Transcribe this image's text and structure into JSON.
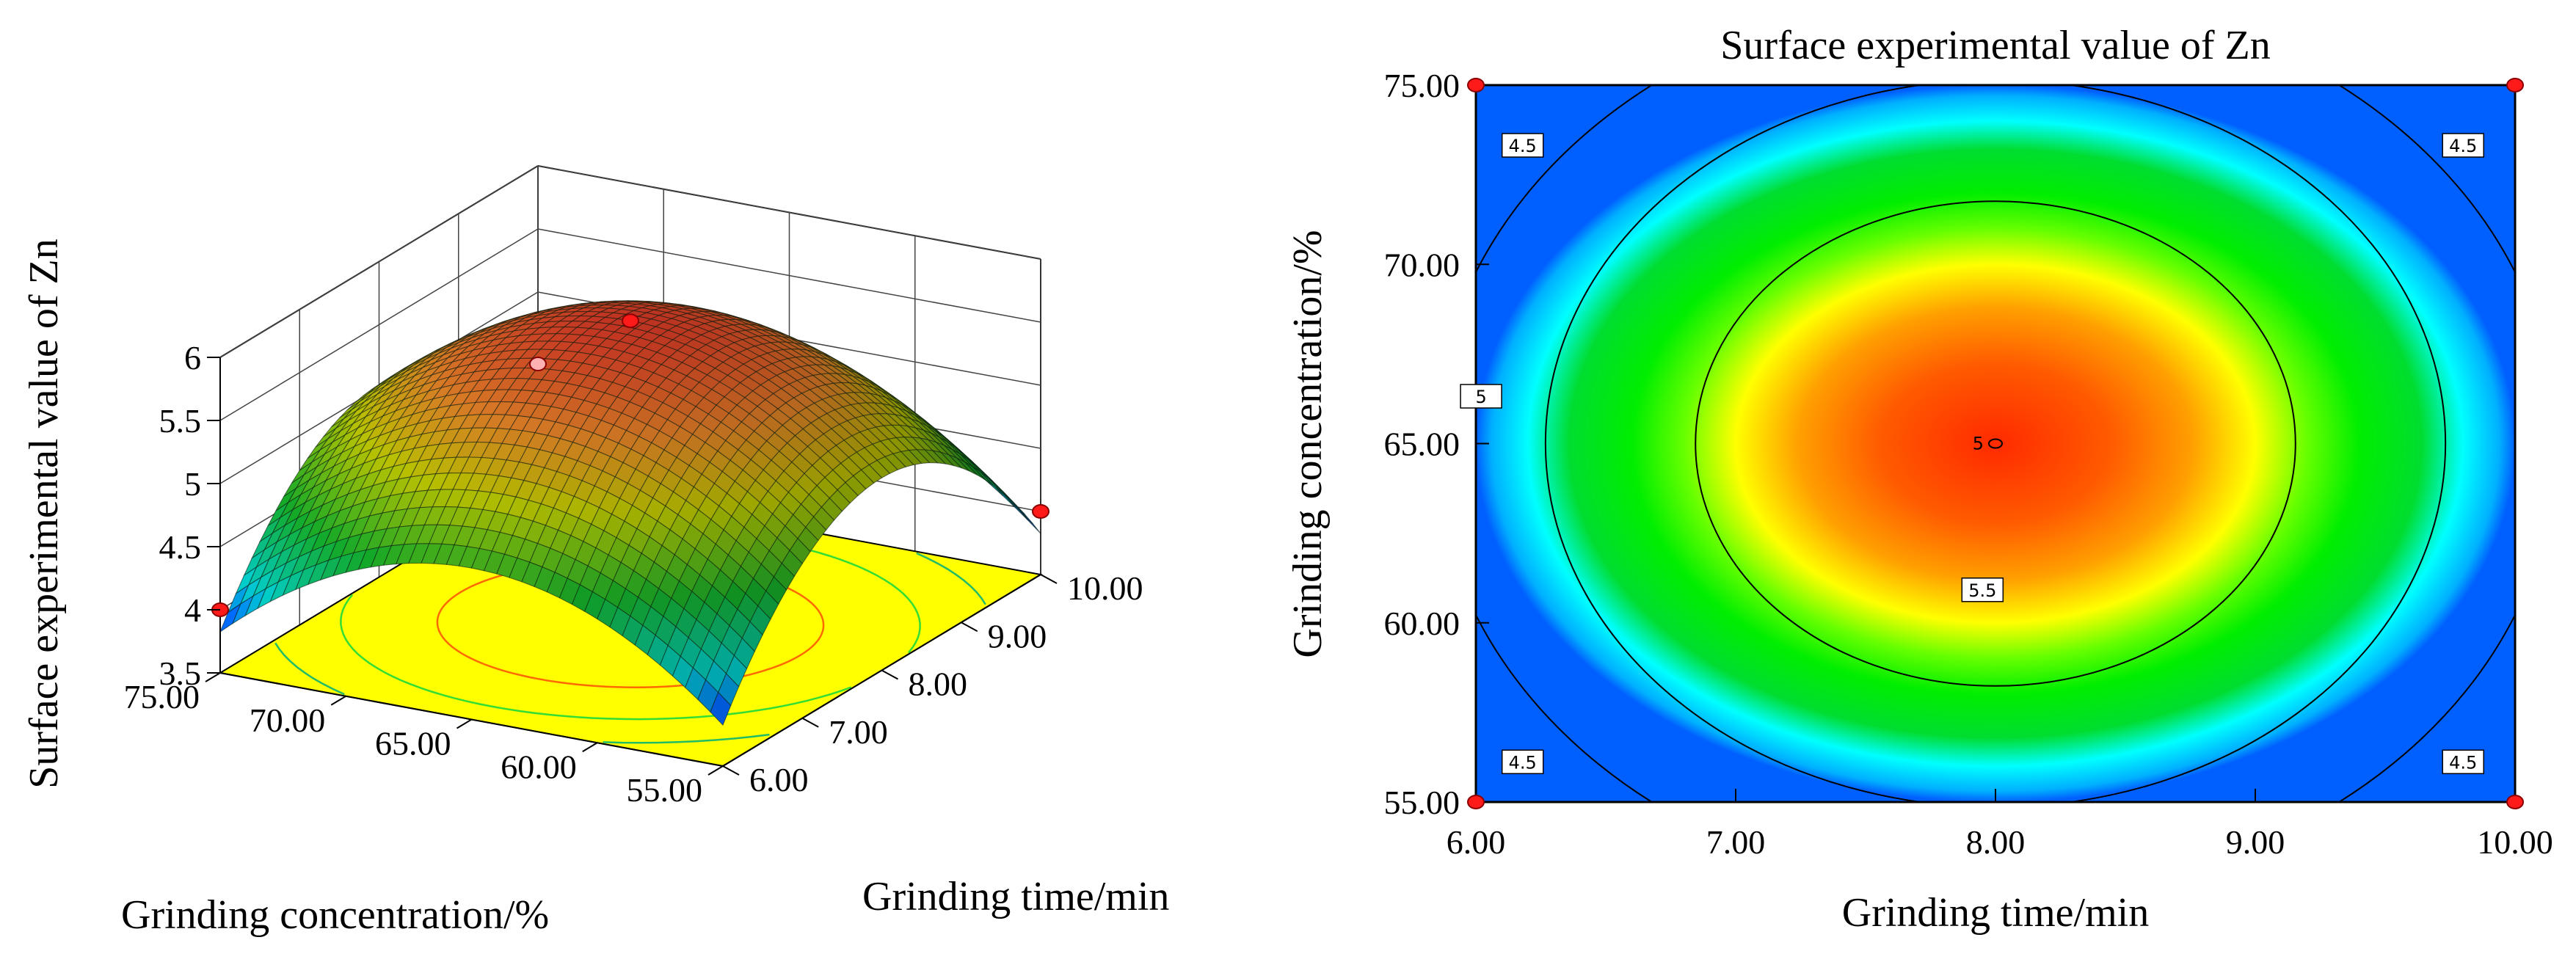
{
  "chart_data": [
    {
      "type": "surface3d",
      "title": "",
      "xlabel": "Grinding time/min",
      "ylabel": "Grinding concentration/%",
      "zlabel": "Surface experimental value of Zn",
      "x_ticks": [
        "6.00",
        "7.00",
        "8.00",
        "9.00",
        "10.00"
      ],
      "y_ticks": [
        "55.00",
        "60.00",
        "65.00",
        "70.00",
        "75.00"
      ],
      "z_ticks": [
        "3.5",
        "4",
        "4.5",
        "5",
        "5.5",
        "6"
      ],
      "xlim": [
        6,
        10
      ],
      "ylim": [
        55,
        75
      ],
      "zlim": [
        3.5,
        6
      ],
      "model": {
        "peak": 5.9,
        "x_center": 8,
        "y_center": 65,
        "a": 0.3,
        "b": 0.00875
      },
      "design_points": [
        {
          "x": 8,
          "y": 65,
          "z": 5.9
        },
        {
          "x": 6,
          "y": 75,
          "z": 4.0
        },
        {
          "x": 10,
          "y": 55,
          "z": 4.0
        },
        {
          "x": 10,
          "y": 75,
          "z": 4.43
        }
      ]
    },
    {
      "type": "contour",
      "title": "Surface experimental value of Zn",
      "xlabel": "Grinding time/min",
      "ylabel": "Grinding concentration/%",
      "x_ticks": [
        "6.00",
        "7.00",
        "8.00",
        "9.00",
        "10.00"
      ],
      "y_ticks": [
        "55.00",
        "60.00",
        "65.00",
        "70.00",
        "75.00"
      ],
      "xlim": [
        6,
        10
      ],
      "ylim": [
        55,
        75
      ],
      "levels": [
        4.5,
        5,
        5.5
      ],
      "contour_labels": [
        "4.5",
        "4.5",
        "4.5",
        "4.5",
        "5",
        "5.5",
        "5"
      ],
      "center_label": "5",
      "design_points": [
        {
          "x": 6,
          "y": 55
        },
        {
          "x": 6,
          "y": 75
        },
        {
          "x": 10,
          "y": 55
        },
        {
          "x": 10,
          "y": 75
        }
      ]
    }
  ]
}
